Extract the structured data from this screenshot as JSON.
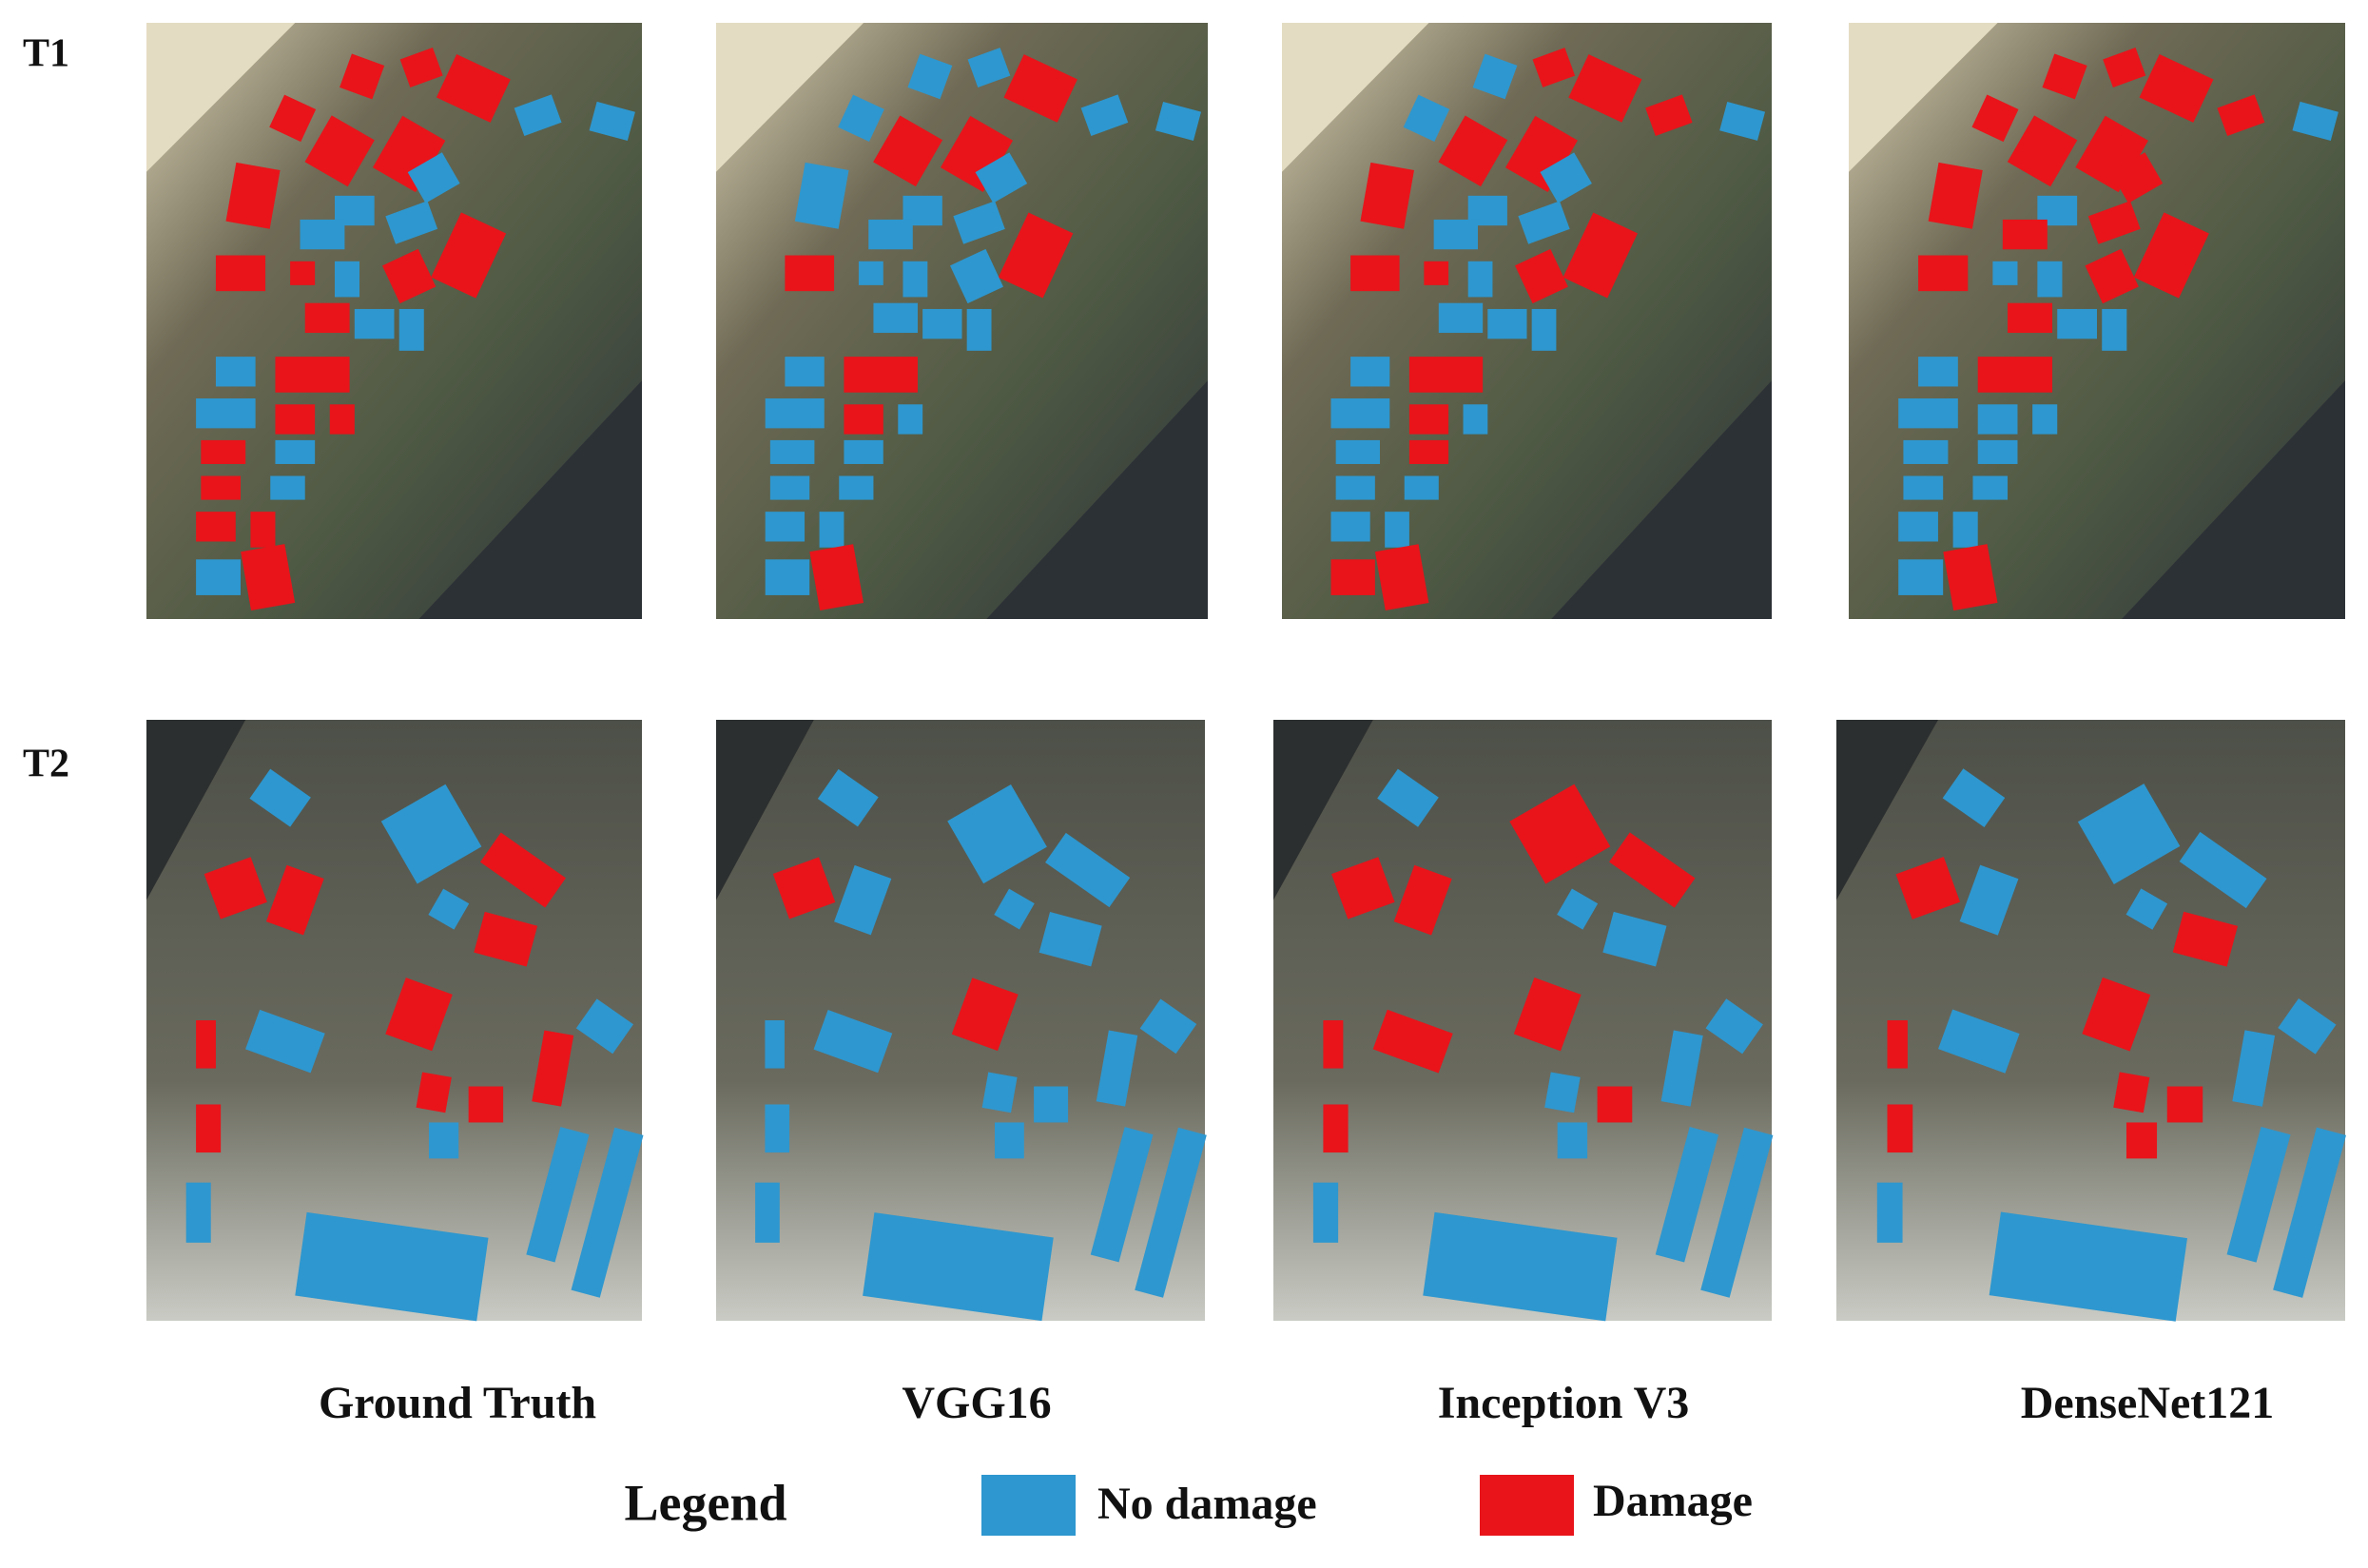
{
  "row_labels": [
    "T1",
    "T2"
  ],
  "column_labels": [
    "Ground Truth",
    "VGG16",
    "Inception V3",
    "DenseNet121"
  ],
  "legend": {
    "title": "Legend",
    "items": [
      {
        "label": "No damage",
        "color": "#2e97cf"
      },
      {
        "label": "Damage",
        "color": "#e8141a"
      }
    ]
  }
}
